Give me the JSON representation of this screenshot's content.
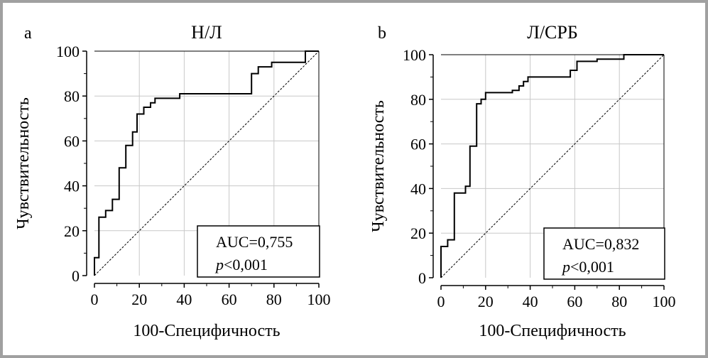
{
  "chart_data": [
    {
      "panel_label": "a",
      "type": "line",
      "title": "Н/Л",
      "xlabel": "100-Специфичность",
      "ylabel": "Чувствительность",
      "xlim": [
        0,
        100
      ],
      "ylim": [
        0,
        100
      ],
      "xticks": [
        "0",
        "20",
        "40",
        "60",
        "80",
        "100"
      ],
      "yticks": [
        "0",
        "20",
        "40",
        "60",
        "80",
        "100"
      ],
      "grid": true,
      "annotation": {
        "auc": "AUC=0,755",
        "p_italic": "p",
        "p_rest": "<0,001"
      },
      "reference_line": {
        "x": [
          0,
          100
        ],
        "y": [
          0,
          100
        ],
        "style": "dashed"
      },
      "series": [
        {
          "x": [
            0,
            0,
            2,
            2,
            5,
            5,
            8,
            8,
            11,
            11,
            14,
            14,
            17,
            17,
            19,
            19,
            22,
            22,
            25,
            25,
            27,
            27,
            30,
            30,
            38,
            38,
            70,
            70,
            73,
            73,
            79,
            79,
            94,
            94,
            100
          ],
          "y": [
            0,
            8,
            8,
            26,
            26,
            29,
            29,
            34,
            34,
            48,
            48,
            58,
            58,
            64,
            64,
            72,
            72,
            75,
            75,
            77,
            77,
            79,
            79,
            79,
            79,
            81,
            81,
            90,
            90,
            93,
            93,
            95,
            95,
            100,
            100
          ]
        }
      ]
    },
    {
      "panel_label": "b",
      "type": "line",
      "title": "Л/СРБ",
      "xlabel": "100-Специфичность",
      "ylabel": "Чувствительность",
      "xlim": [
        0,
        100
      ],
      "ylim": [
        0,
        100
      ],
      "xticks": [
        "0",
        "20",
        "40",
        "60",
        "80",
        "100"
      ],
      "yticks": [
        "0",
        "20",
        "40",
        "60",
        "80",
        "100"
      ],
      "grid": true,
      "annotation": {
        "auc": "AUC=0,832",
        "p_italic": "p",
        "p_rest": "<0,001"
      },
      "reference_line": {
        "x": [
          0,
          100
        ],
        "y": [
          0,
          100
        ],
        "style": "dashed"
      },
      "series": [
        {
          "x": [
            0,
            0,
            3,
            3,
            6,
            6,
            11,
            11,
            13,
            13,
            16,
            16,
            18,
            18,
            20,
            20,
            32,
            32,
            35,
            35,
            37,
            37,
            39,
            39,
            58,
            58,
            61,
            61,
            70,
            70,
            82,
            82,
            100
          ],
          "y": [
            0,
            14,
            14,
            17,
            17,
            38,
            38,
            41,
            41,
            59,
            59,
            78,
            78,
            80,
            80,
            83,
            83,
            84,
            84,
            86,
            86,
            88,
            88,
            90,
            90,
            93,
            93,
            97,
            97,
            98,
            98,
            100,
            100
          ]
        }
      ]
    }
  ]
}
